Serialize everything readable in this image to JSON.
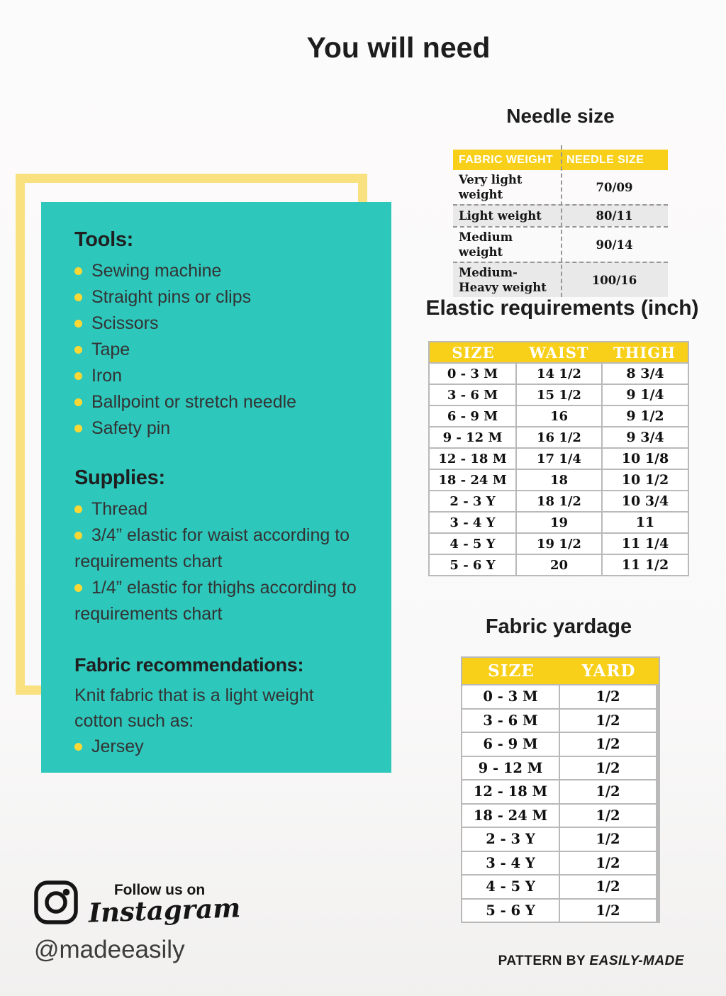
{
  "page": {
    "title": "You will need"
  },
  "colors": {
    "panel_teal": "#2ec7bc",
    "frame_yellow": "#fae180",
    "table_header_yellow": "#f8d019",
    "bullet_yellow": "#fdd835"
  },
  "info_panel": {
    "tools": {
      "heading": "Tools:",
      "items": [
        "Sewing machine",
        "Straight pins or clips",
        "Scissors",
        "Tape",
        "Iron",
        "Ballpoint or stretch needle",
        "Safety pin"
      ]
    },
    "supplies": {
      "heading": "Supplies:",
      "items": [
        "Thread",
        "3/4” elastic for waist according to requirements chart",
        "1/4” elastic for thighs according to requirements chart"
      ]
    },
    "fabric": {
      "heading": "Fabric recommendations:",
      "intro": "Knit fabric that is a light weight cotton such as:",
      "items": [
        "Jersey"
      ]
    }
  },
  "needle_table": {
    "title": "Needle size",
    "headers": [
      "FABRIC WEIGHT",
      "NEEDLE SIZE"
    ],
    "rows": [
      [
        "Very light weight",
        "70/09"
      ],
      [
        "Light weight",
        "80/11"
      ],
      [
        "Medium weight",
        "90/14"
      ],
      [
        "Medium-\nHeavy weight",
        "100/16"
      ]
    ]
  },
  "elastic_table": {
    "title": "Elastic requirements (inch)",
    "headers": [
      "SIZE",
      "WAIST",
      "THIGH"
    ],
    "rows": [
      [
        "0 - 3 M",
        "14 1/2",
        "8 3/4"
      ],
      [
        "3 - 6 M",
        "15 1/2",
        "9 1/4"
      ],
      [
        "6 - 9 M",
        "16",
        "9 1/2"
      ],
      [
        "9 - 12 M",
        "16 1/2",
        "9 3/4"
      ],
      [
        "12 - 18 M",
        "17 1/4",
        "10 1/8"
      ],
      [
        "18 - 24 M",
        "18",
        "10 1/2"
      ],
      [
        "2 - 3 Y",
        "18 1/2",
        "10 3/4"
      ],
      [
        "3 - 4 Y",
        "19",
        "11"
      ],
      [
        "4 - 5 Y",
        "19 1/2",
        "11 1/4"
      ],
      [
        "5 - 6 Y",
        "20",
        "11 1/2"
      ]
    ]
  },
  "yardage_table": {
    "title": "Fabric yardage",
    "headers": [
      "SIZE",
      "YARD"
    ],
    "rows": [
      [
        "0 - 3 M",
        "1/2"
      ],
      [
        "3 - 6 M",
        "1/2"
      ],
      [
        "6 - 9 M",
        "1/2"
      ],
      [
        "9 - 12 M",
        "1/2"
      ],
      [
        "12 - 18 M",
        "1/2"
      ],
      [
        "18 - 24 M",
        "1/2"
      ],
      [
        "2 - 3 Y",
        "1/2"
      ],
      [
        "3 - 4 Y",
        "1/2"
      ],
      [
        "4 - 5 Y",
        "1/2"
      ],
      [
        "5 - 6 Y",
        "1/2"
      ]
    ]
  },
  "social": {
    "follow_text": "Follow us on",
    "network": "Instagram",
    "handle": "@madeeasily"
  },
  "footer": {
    "pattern_by_label": "PATTERN BY",
    "brand": "EASILY-MADE"
  }
}
